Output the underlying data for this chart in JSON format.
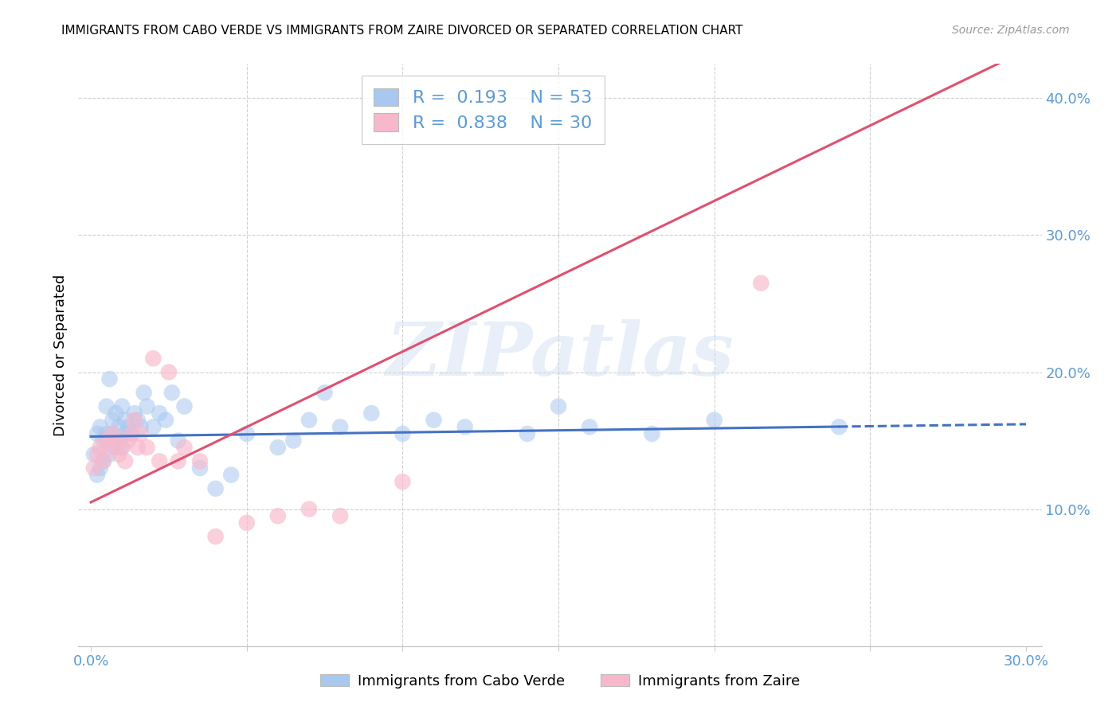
{
  "title": "IMMIGRANTS FROM CABO VERDE VS IMMIGRANTS FROM ZAIRE DIVORCED OR SEPARATED CORRELATION CHART",
  "source": "Source: ZipAtlas.com",
  "ylabel": "Divorced or Separated",
  "xlim": [
    -0.004,
    0.305
  ],
  "ylim": [
    0.0,
    0.425
  ],
  "xtick_positions": [
    0.0,
    0.05,
    0.1,
    0.15,
    0.2,
    0.25,
    0.3
  ],
  "xtick_labels": [
    "0.0%",
    "",
    "",
    "",
    "",
    "",
    "30.0%"
  ],
  "ytick_positions": [
    0.1,
    0.2,
    0.3,
    0.4
  ],
  "ytick_labels": [
    "10.0%",
    "20.0%",
    "30.0%",
    "40.0%"
  ],
  "cabo_verde_R": 0.193,
  "cabo_verde_N": 53,
  "zaire_R": 0.838,
  "zaire_N": 30,
  "cabo_verde_color": "#a8c8f0",
  "zaire_color": "#f8b8cc",
  "cabo_verde_line_color": "#4472c4",
  "zaire_line_color": "#e05070",
  "watermark_text": "ZIPatlas",
  "cabo_verde_x": [
    0.001,
    0.002,
    0.002,
    0.003,
    0.003,
    0.004,
    0.004,
    0.005,
    0.005,
    0.006,
    0.006,
    0.007,
    0.007,
    0.008,
    0.008,
    0.009,
    0.009,
    0.01,
    0.01,
    0.011,
    0.011,
    0.012,
    0.013,
    0.014,
    0.015,
    0.016,
    0.017,
    0.018,
    0.02,
    0.022,
    0.024,
    0.026,
    0.028,
    0.03,
    0.035,
    0.04,
    0.045,
    0.05,
    0.06,
    0.065,
    0.07,
    0.075,
    0.08,
    0.09,
    0.1,
    0.11,
    0.12,
    0.14,
    0.15,
    0.16,
    0.18,
    0.2,
    0.24
  ],
  "cabo_verde_y": [
    0.14,
    0.125,
    0.155,
    0.13,
    0.16,
    0.135,
    0.15,
    0.155,
    0.175,
    0.14,
    0.195,
    0.165,
    0.155,
    0.145,
    0.17,
    0.15,
    0.16,
    0.175,
    0.145,
    0.155,
    0.165,
    0.16,
    0.155,
    0.17,
    0.165,
    0.16,
    0.185,
    0.175,
    0.16,
    0.17,
    0.165,
    0.185,
    0.15,
    0.175,
    0.13,
    0.115,
    0.125,
    0.155,
    0.145,
    0.15,
    0.165,
    0.185,
    0.16,
    0.17,
    0.155,
    0.165,
    0.16,
    0.155,
    0.175,
    0.16,
    0.155,
    0.165,
    0.16
  ],
  "zaire_x": [
    0.001,
    0.002,
    0.003,
    0.004,
    0.005,
    0.006,
    0.007,
    0.008,
    0.009,
    0.01,
    0.011,
    0.012,
    0.013,
    0.014,
    0.015,
    0.016,
    0.018,
    0.02,
    0.022,
    0.025,
    0.028,
    0.03,
    0.035,
    0.04,
    0.05,
    0.06,
    0.07,
    0.08,
    0.1,
    0.215
  ],
  "zaire_y": [
    0.13,
    0.14,
    0.145,
    0.135,
    0.15,
    0.145,
    0.155,
    0.15,
    0.14,
    0.145,
    0.135,
    0.15,
    0.155,
    0.165,
    0.145,
    0.155,
    0.145,
    0.21,
    0.135,
    0.2,
    0.135,
    0.145,
    0.135,
    0.08,
    0.09,
    0.095,
    0.1,
    0.095,
    0.12,
    0.265
  ],
  "cabo_verde_line_x": [
    0.0,
    0.3
  ],
  "cabo_verde_line_y_intercept": 0.153,
  "cabo_verde_line_slope": 0.03,
  "zaire_line_x": [
    0.0,
    0.305
  ],
  "zaire_line_y_intercept": 0.105,
  "zaire_line_slope": 1.1
}
